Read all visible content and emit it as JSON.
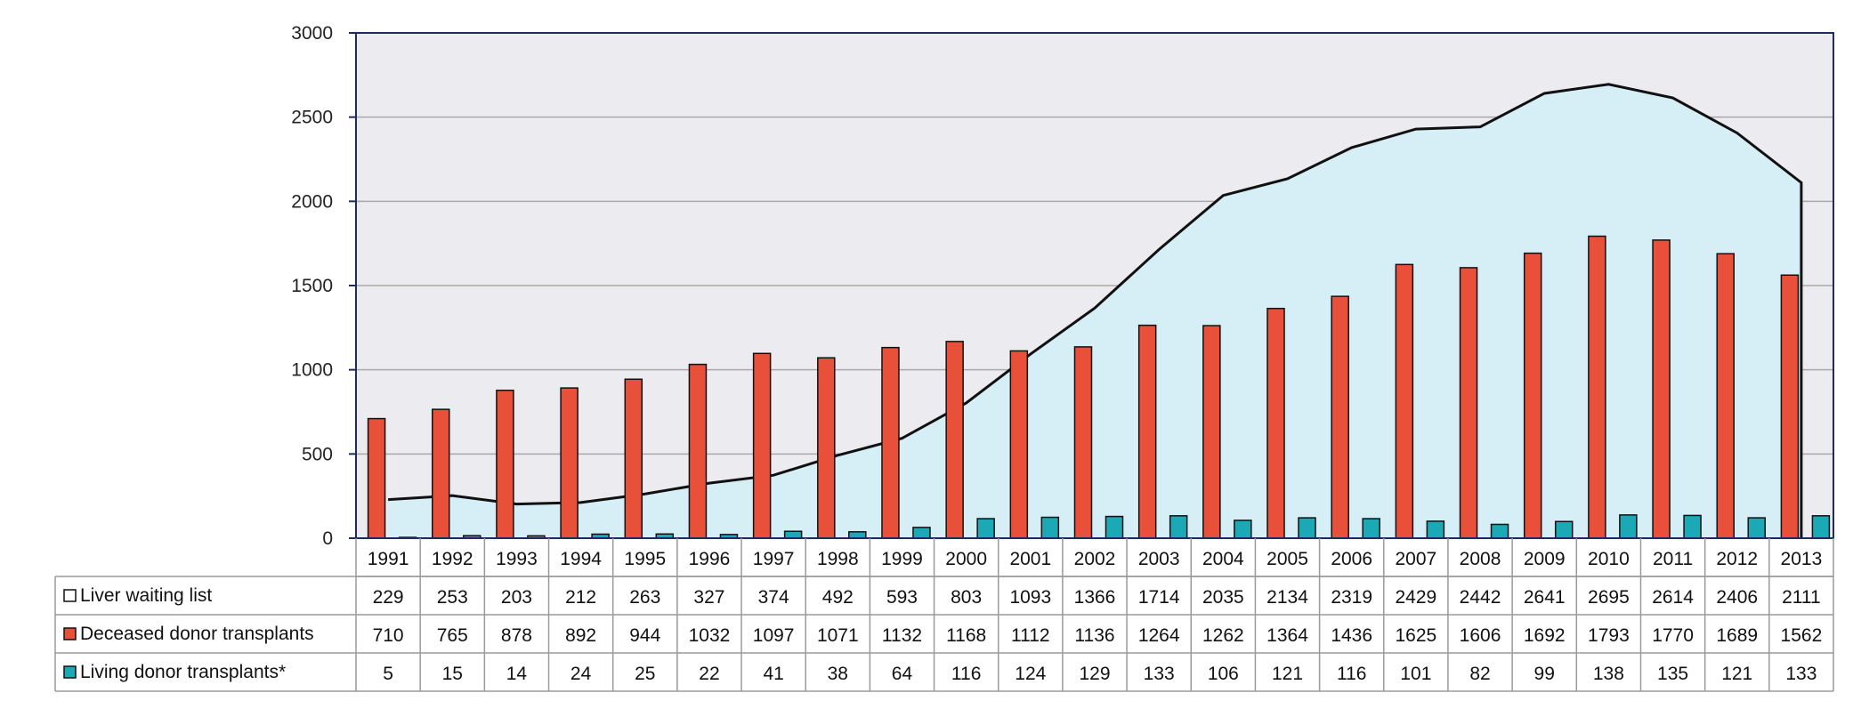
{
  "chart_data": {
    "type": "bar",
    "categories": [
      "1991",
      "1992",
      "1993",
      "1994",
      "1995",
      "1996",
      "1997",
      "1998",
      "1999",
      "2000",
      "2001",
      "2002",
      "2003",
      "2004",
      "2005",
      "2006",
      "2007",
      "2008",
      "2009",
      "2010",
      "2011",
      "2012",
      "2013"
    ],
    "series": [
      {
        "name": "Liver waiting list",
        "render": "area",
        "color": "#d6eef5",
        "values": [
          229,
          253,
          203,
          212,
          263,
          327,
          374,
          492,
          593,
          803,
          1093,
          1366,
          1714,
          2035,
          2134,
          2319,
          2429,
          2442,
          2641,
          2695,
          2614,
          2406,
          2111
        ]
      },
      {
        "name": "Deceased donor transplants",
        "render": "bar",
        "color": "#e8503a",
        "values": [
          710,
          765,
          878,
          892,
          944,
          1032,
          1097,
          1071,
          1132,
          1168,
          1112,
          1136,
          1264,
          1262,
          1364,
          1436,
          1625,
          1606,
          1692,
          1793,
          1770,
          1689,
          1562
        ]
      },
      {
        "name": "Living donor transplants*",
        "render": "bar",
        "color": "#1ba9b6",
        "values": [
          5,
          15,
          14,
          24,
          25,
          22,
          41,
          38,
          64,
          116,
          124,
          129,
          133,
          106,
          121,
          116,
          101,
          82,
          99,
          138,
          135,
          121,
          133
        ]
      }
    ],
    "ylim": [
      0,
      3000
    ],
    "yticks": [
      0,
      500,
      1000,
      1500,
      2000,
      2500,
      3000
    ],
    "grid": true,
    "legend": "data-table"
  },
  "colors": {
    "plot_background": "#ecebef",
    "grid": "#a9a9a9",
    "frame": "#1f2a63",
    "area_line": "#111111"
  }
}
